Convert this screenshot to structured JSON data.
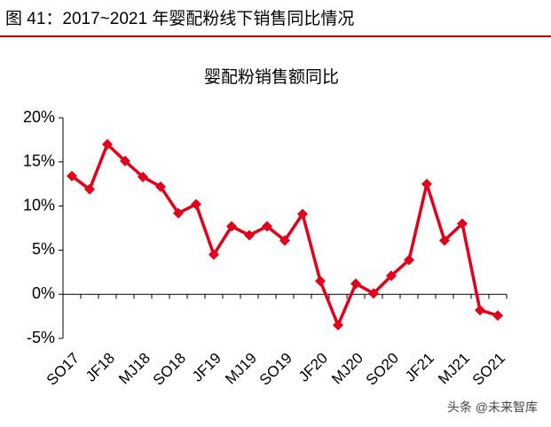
{
  "header": {
    "title": "图 41：2017~2021 年婴配粉线下销售同比情况"
  },
  "chart_data": {
    "type": "line",
    "title": "婴配粉销售额同比",
    "categories": [
      "SO17",
      null,
      "JF18",
      null,
      "MJ18",
      null,
      "SO18",
      null,
      "JF19",
      null,
      "MJ19",
      null,
      "SO19",
      null,
      "JF20",
      null,
      "MJ20",
      null,
      "SO20",
      null,
      "JF21",
      null,
      "MJ21",
      null,
      "SO21"
    ],
    "series": [
      {
        "name": "婴配粉销售额同比",
        "color": "#e3001b",
        "values": [
          13.4,
          11.9,
          17.0,
          15.1,
          13.3,
          12.2,
          9.2,
          10.2,
          4.5,
          7.7,
          6.7,
          7.7,
          6.1,
          9.1,
          1.5,
          -3.5,
          1.2,
          0.1,
          2.1,
          3.9,
          12.5,
          6.1,
          8.0,
          -1.8,
          -2.4
        ]
      }
    ],
    "ylim": [
      -5,
      20
    ],
    "yticks": [
      {
        "value": -5,
        "label": "-5%"
      },
      {
        "value": 0,
        "label": "0%"
      },
      {
        "value": 5,
        "label": "5%"
      },
      {
        "value": 10,
        "label": "10%"
      },
      {
        "value": 15,
        "label": "15%"
      },
      {
        "value": 20,
        "label": "20%"
      }
    ],
    "legend": false
  },
  "watermark": "头条 @未来智库"
}
